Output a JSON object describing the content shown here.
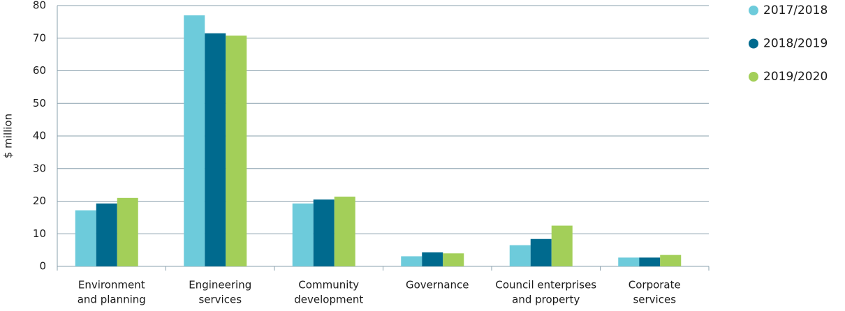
{
  "chart_data": {
    "type": "bar",
    "y_label": "$ million",
    "categories": [
      [
        "Environment",
        "and planning"
      ],
      [
        "Engineering",
        "services"
      ],
      [
        "Community",
        "development"
      ],
      [
        "Governance"
      ],
      [
        "Council enterprises",
        "and property"
      ],
      [
        "Corporate",
        "services"
      ]
    ],
    "series": [
      {
        "name": "2017/2018",
        "color": "#6dcbdb",
        "values": [
          17.2,
          77.0,
          19.3,
          3.1,
          6.5,
          2.7
        ]
      },
      {
        "name": "2018/2019",
        "color": "#006a8e",
        "values": [
          19.3,
          71.5,
          20.5,
          4.3,
          8.4,
          2.7
        ]
      },
      {
        "name": "2019/2020",
        "color": "#a3cf59",
        "values": [
          21.0,
          70.8,
          21.4,
          4.0,
          12.5,
          3.5
        ]
      }
    ],
    "ylim": [
      0,
      80
    ],
    "yticks": [
      0,
      10,
      20,
      30,
      40,
      50,
      60,
      70,
      80
    ],
    "grid": true,
    "legend": "right"
  }
}
